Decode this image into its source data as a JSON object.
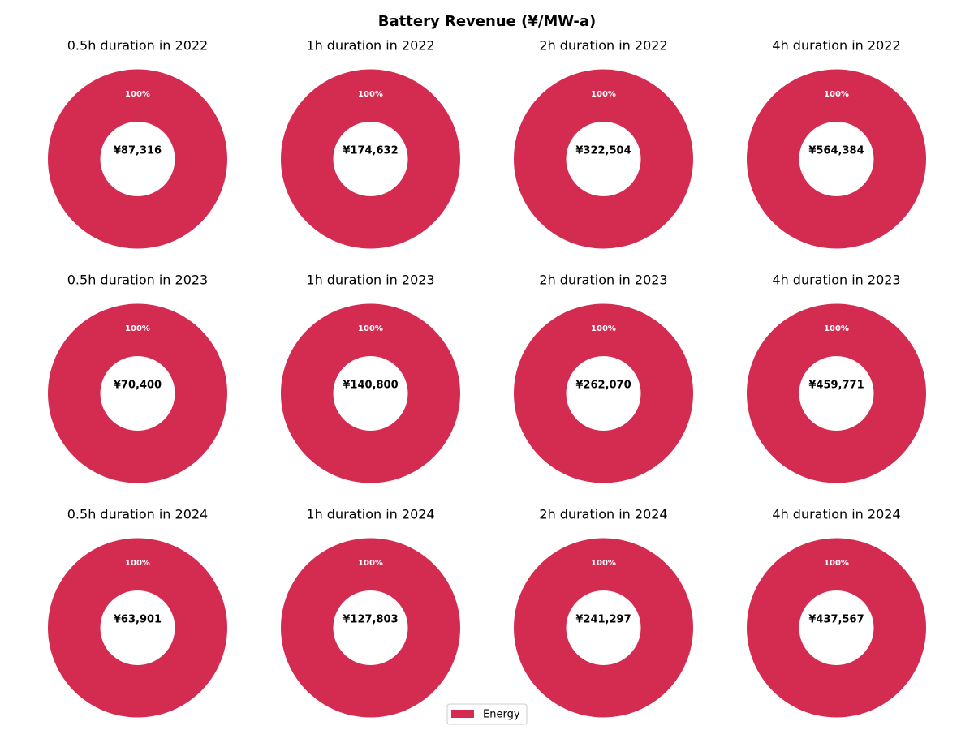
{
  "chart_data": {
    "type": "pie",
    "title": "Battery Revenue (¥/MW-a)",
    "legend": {
      "placement": "bottom-center",
      "entries": [
        "Energy"
      ]
    },
    "colors": {
      "Energy": "#d42b51"
    },
    "panels": [
      {
        "title": "0.5h duration in 2022",
        "total_label": "¥87,316",
        "total": 87316,
        "slices": [
          {
            "name": "Energy",
            "value": 87316,
            "percent_label": "100%"
          }
        ]
      },
      {
        "title": "1h duration in 2022",
        "total_label": "¥174,632",
        "total": 174632,
        "slices": [
          {
            "name": "Energy",
            "value": 174632,
            "percent_label": "100%"
          }
        ]
      },
      {
        "title": "2h duration in 2022",
        "total_label": "¥322,504",
        "total": 322504,
        "slices": [
          {
            "name": "Energy",
            "value": 322504,
            "percent_label": "100%"
          }
        ]
      },
      {
        "title": "4h duration in 2022",
        "total_label": "¥564,384",
        "total": 564384,
        "slices": [
          {
            "name": "Energy",
            "value": 564384,
            "percent_label": "100%"
          }
        ]
      },
      {
        "title": "0.5h duration in 2023",
        "total_label": "¥70,400",
        "total": 70400,
        "slices": [
          {
            "name": "Energy",
            "value": 70400,
            "percent_label": "100%"
          }
        ]
      },
      {
        "title": "1h duration in 2023",
        "total_label": "¥140,800",
        "total": 140800,
        "slices": [
          {
            "name": "Energy",
            "value": 140800,
            "percent_label": "100%"
          }
        ]
      },
      {
        "title": "2h duration in 2023",
        "total_label": "¥262,070",
        "total": 262070,
        "slices": [
          {
            "name": "Energy",
            "value": 262070,
            "percent_label": "100%"
          }
        ]
      },
      {
        "title": "4h duration in 2023",
        "total_label": "¥459,771",
        "total": 459771,
        "slices": [
          {
            "name": "Energy",
            "value": 459771,
            "percent_label": "100%"
          }
        ]
      },
      {
        "title": "0.5h duration in 2024",
        "total_label": "¥63,901",
        "total": 63901,
        "slices": [
          {
            "name": "Energy",
            "value": 63901,
            "percent_label": "100%"
          }
        ]
      },
      {
        "title": "1h duration in 2024",
        "total_label": "¥127,803",
        "total": 127803,
        "slices": [
          {
            "name": "Energy",
            "value": 127803,
            "percent_label": "100%"
          }
        ]
      },
      {
        "title": "2h duration in 2024",
        "total_label": "¥241,297",
        "total": 241297,
        "slices": [
          {
            "name": "Energy",
            "value": 241297,
            "percent_label": "100%"
          }
        ]
      },
      {
        "title": "4h duration in 2024",
        "total_label": "¥437,567",
        "total": 437567,
        "slices": [
          {
            "name": "Energy",
            "value": 437567,
            "percent_label": "100%"
          }
        ]
      }
    ]
  }
}
